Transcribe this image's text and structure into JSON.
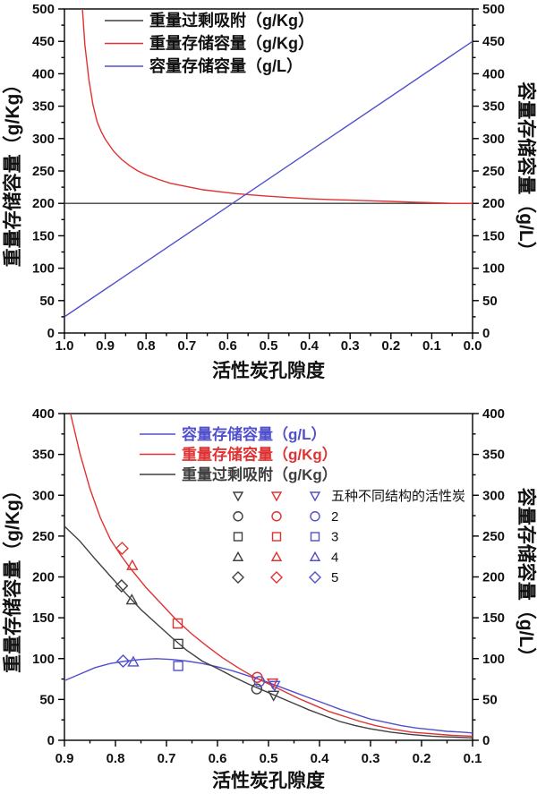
{
  "colors": {
    "excess": "#3f3f3f",
    "gravimetric": "#e03232",
    "volumetric": "#5050cc",
    "axis": "#000000",
    "text": "#111111"
  },
  "chart_data": [
    {
      "type": "line",
      "x_axis": {
        "title": "活性炭孔隙度",
        "left": 1.0,
        "right": 0.0,
        "minor_step": 0.05,
        "ticks": [
          {
            "v": 1.0,
            "label": "1.0"
          },
          {
            "v": 0.9,
            "label": "0.9"
          },
          {
            "v": 0.8,
            "label": "0.8"
          },
          {
            "v": 0.7,
            "label": "0.7"
          },
          {
            "v": 0.6,
            "label": "0.6"
          },
          {
            "v": 0.5,
            "label": "0.5"
          },
          {
            "v": 0.4,
            "label": "0.4"
          },
          {
            "v": 0.3,
            "label": "0.3"
          },
          {
            "v": 0.2,
            "label": "0.2"
          },
          {
            "v": 0.1,
            "label": "0.1"
          },
          {
            "v": 0.0,
            "label": "0.0"
          }
        ]
      },
      "y_axis": {
        "title_left": "重量存储容量（g/Kg）",
        "title_right": "容量存储容量（g/L）",
        "min": 0,
        "max": 500,
        "minor_step": 25,
        "ticks": [
          {
            "v": 0,
            "label": "0"
          },
          {
            "v": 50,
            "label": "50"
          },
          {
            "v": 100,
            "label": "100"
          },
          {
            "v": 150,
            "label": "150"
          },
          {
            "v": 200,
            "label": "200"
          },
          {
            "v": 250,
            "label": "250"
          },
          {
            "v": 300,
            "label": "300"
          },
          {
            "v": 350,
            "label": "350"
          },
          {
            "v": 400,
            "label": "400"
          },
          {
            "v": 450,
            "label": "450"
          },
          {
            "v": 500,
            "label": "500"
          }
        ]
      },
      "legend": {
        "colored_text": false,
        "items": [
          {
            "key": "excess",
            "label": "重量过剩吸附（g/Kg）"
          },
          {
            "key": "gravimetric",
            "label": "重量存储容量（g/Kg）"
          },
          {
            "key": "volumetric",
            "label": "容量存储容量（g/L）"
          }
        ]
      },
      "series": [
        {
          "key": "excess",
          "points": [
            [
              1.0,
              200
            ],
            [
              0.0,
              200
            ]
          ]
        },
        {
          "key": "gravimetric",
          "points": [
            [
              0.956,
              500
            ],
            [
              0.95,
              445
            ],
            [
              0.94,
              390
            ],
            [
              0.93,
              352
            ],
            [
              0.92,
              326
            ],
            [
              0.91,
              311
            ],
            [
              0.9,
              299
            ],
            [
              0.88,
              281
            ],
            [
              0.86,
              268
            ],
            [
              0.84,
              258
            ],
            [
              0.82,
              250
            ],
            [
              0.8,
              244
            ],
            [
              0.77,
              237
            ],
            [
              0.74,
              231
            ],
            [
              0.7,
              226
            ],
            [
              0.66,
              221
            ],
            [
              0.62,
              218
            ],
            [
              0.58,
              215
            ],
            [
              0.54,
              213
            ],
            [
              0.5,
              211
            ],
            [
              0.45,
              209
            ],
            [
              0.4,
              207
            ],
            [
              0.35,
              206
            ],
            [
              0.3,
              205
            ],
            [
              0.25,
              204
            ],
            [
              0.2,
              203
            ],
            [
              0.15,
              202
            ],
            [
              0.1,
              201
            ],
            [
              0.05,
              200
            ],
            [
              0.0,
              200
            ]
          ]
        },
        {
          "key": "volumetric",
          "points": [
            [
              1.0,
              25
            ],
            [
              0.0,
              450
            ]
          ]
        }
      ]
    },
    {
      "type": "line+scatter",
      "x_axis": {
        "title": "活性炭孔隙度",
        "left": 0.9,
        "right": 0.1,
        "minor_step": 0.05,
        "ticks": [
          {
            "v": 0.9,
            "label": "0.9"
          },
          {
            "v": 0.8,
            "label": "0.8"
          },
          {
            "v": 0.7,
            "label": "0.7"
          },
          {
            "v": 0.6,
            "label": "0.6"
          },
          {
            "v": 0.5,
            "label": "0.5"
          },
          {
            "v": 0.4,
            "label": "0.4"
          },
          {
            "v": 0.3,
            "label": "0.3"
          },
          {
            "v": 0.2,
            "label": "0.2"
          },
          {
            "v": 0.1,
            "label": "0.1"
          }
        ]
      },
      "y_axis": {
        "title_left": "重量存储容量（g/Kg）",
        "title_right": "容量存储容量（g/L）",
        "min": 0,
        "max": 400,
        "minor_step": 25,
        "ticks": [
          {
            "v": 0,
            "label": "0"
          },
          {
            "v": 50,
            "label": "50"
          },
          {
            "v": 100,
            "label": "100"
          },
          {
            "v": 150,
            "label": "150"
          },
          {
            "v": 200,
            "label": "200"
          },
          {
            "v": 250,
            "label": "250"
          },
          {
            "v": 300,
            "label": "300"
          },
          {
            "v": 350,
            "label": "350"
          },
          {
            "v": 400,
            "label": "400"
          }
        ]
      },
      "legend": {
        "colored_text": true,
        "items": [
          {
            "key": "volumetric",
            "label": "容量存储容量（g/L）"
          },
          {
            "key": "gravimetric",
            "label": "重量存储容量（g/Kg）"
          },
          {
            "key": "excess",
            "label": "重量过剩吸附（g/Kg）"
          }
        ]
      },
      "series": [
        {
          "key": "volumetric",
          "points": [
            [
              0.9,
              73
            ],
            [
              0.87,
              81
            ],
            [
              0.84,
              89
            ],
            [
              0.81,
              94
            ],
            [
              0.78,
              97
            ],
            [
              0.75,
              99
            ],
            [
              0.72,
              100
            ],
            [
              0.69,
              99
            ],
            [
              0.66,
              97
            ],
            [
              0.63,
              94
            ],
            [
              0.6,
              90
            ],
            [
              0.57,
              85
            ],
            [
              0.54,
              79
            ],
            [
              0.51,
              73
            ],
            [
              0.48,
              66
            ],
            [
              0.45,
              59
            ],
            [
              0.42,
              52
            ],
            [
              0.39,
              45
            ],
            [
              0.36,
              38
            ],
            [
              0.33,
              32
            ],
            [
              0.3,
              26
            ],
            [
              0.27,
              22
            ],
            [
              0.24,
              18
            ],
            [
              0.21,
              15
            ],
            [
              0.18,
              13
            ],
            [
              0.15,
              11
            ],
            [
              0.12,
              10
            ],
            [
              0.1,
              9
            ]
          ]
        },
        {
          "key": "gravimetric",
          "points": [
            [
              0.888,
              400
            ],
            [
              0.87,
              352
            ],
            [
              0.85,
              308
            ],
            [
              0.83,
              273
            ],
            [
              0.81,
              246
            ],
            [
              0.79,
              227
            ],
            [
              0.77,
              210
            ],
            [
              0.74,
              187
            ],
            [
              0.71,
              167
            ],
            [
              0.68,
              147
            ],
            [
              0.65,
              130
            ],
            [
              0.62,
              115
            ],
            [
              0.59,
              101
            ],
            [
              0.56,
              89
            ],
            [
              0.53,
              78
            ],
            [
              0.5,
              69
            ],
            [
              0.47,
              60
            ],
            [
              0.44,
              51
            ],
            [
              0.41,
              43
            ],
            [
              0.38,
              35
            ],
            [
              0.35,
              29
            ],
            [
              0.32,
              23
            ],
            [
              0.29,
              18
            ],
            [
              0.26,
              14
            ],
            [
              0.22,
              10
            ],
            [
              0.18,
              8
            ],
            [
              0.14,
              6
            ],
            [
              0.1,
              5
            ]
          ]
        },
        {
          "key": "excess",
          "points": [
            [
              0.9,
              262
            ],
            [
              0.87,
              244
            ],
            [
              0.84,
              222
            ],
            [
              0.81,
              201
            ],
            [
              0.78,
              180
            ],
            [
              0.75,
              160
            ],
            [
              0.72,
              143
            ],
            [
              0.69,
              126
            ],
            [
              0.66,
              110
            ],
            [
              0.63,
              97
            ],
            [
              0.6,
              88
            ],
            [
              0.57,
              78
            ],
            [
              0.54,
              69
            ],
            [
              0.51,
              61
            ],
            [
              0.48,
              53
            ],
            [
              0.45,
              45
            ],
            [
              0.42,
              37
            ],
            [
              0.39,
              30
            ],
            [
              0.36,
              23
            ],
            [
              0.33,
              18
            ],
            [
              0.3,
              14
            ],
            [
              0.26,
              10
            ],
            [
              0.22,
              7
            ],
            [
              0.18,
              5
            ],
            [
              0.14,
              4
            ],
            [
              0.1,
              3
            ]
          ]
        }
      ],
      "scatter": [
        {
          "structure": "1",
          "marker": "triangle-down",
          "points": {
            "excess": [
              0.49,
              55
            ],
            "gravimetric": [
              0.492,
              70
            ],
            "volumetric": [
              0.488,
              67
            ]
          }
        },
        {
          "structure": "2",
          "marker": "circle",
          "points": {
            "excess": [
              0.523,
              63
            ],
            "gravimetric": [
              0.522,
              77
            ],
            "volumetric": [
              0.518,
              72
            ]
          }
        },
        {
          "structure": "3",
          "marker": "square",
          "points": {
            "excess": [
              0.677,
              118
            ],
            "gravimetric": [
              0.678,
              143
            ],
            "volumetric": [
              0.677,
              91
            ]
          }
        },
        {
          "structure": "4",
          "marker": "triangle-up",
          "points": {
            "excess": [
              0.768,
              172
            ],
            "gravimetric": [
              0.767,
              214
            ],
            "volumetric": [
              0.765,
              96
            ]
          }
        },
        {
          "structure": "5",
          "marker": "diamond",
          "points": {
            "excess": [
              0.788,
              189
            ],
            "gravimetric": [
              0.787,
              235
            ],
            "volumetric": [
              0.785,
              97
            ]
          }
        }
      ],
      "marker_legend": {
        "columns": [
          "excess",
          "gravimetric",
          "volumetric"
        ],
        "rows": [
          {
            "marker": "triangle-down",
            "label": "五种不同结构的活性炭"
          },
          {
            "marker": "circle",
            "label": "2"
          },
          {
            "marker": "square",
            "label": "3"
          },
          {
            "marker": "triangle-up",
            "label": "4"
          },
          {
            "marker": "diamond",
            "label": "5"
          }
        ]
      }
    }
  ]
}
